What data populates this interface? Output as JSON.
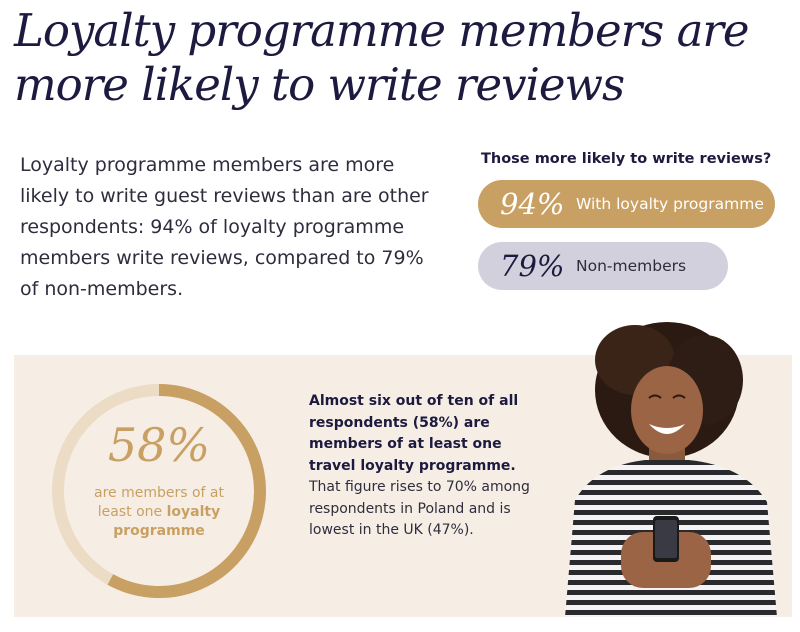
{
  "header": {
    "title": "Loyalty programme members are more likely to write reviews"
  },
  "intro": {
    "text": "Loyalty programme members are more likely to write guest reviews than are other respondents: 94% of loyalty programme members write reviews, compared to 79% of non-members."
  },
  "comparison": {
    "heading": "Those more likely to write reviews?",
    "items": [
      {
        "value_label": "94%",
        "label": "With loyalty programme"
      },
      {
        "value_label": "79%",
        "label": "Non-members"
      }
    ]
  },
  "membership": {
    "value_label": "58%",
    "caption_prefix": "are members of at least one ",
    "caption_bold": "loyalty programme",
    "fact_bold": "Almost six out of ten of all respondents (58%) are members of at least one travel loyalty programme.",
    "fact_rest": " That figure rises to 70% among respondents in Poland and is lowest in the UK (47%)."
  },
  "colors": {
    "accent_gold": "#c9a063",
    "ring_track": "#ecdcc5",
    "pill_gray": "#d2d0dc",
    "navy": "#1d1a3f",
    "band_bg": "#f6eee5"
  },
  "chart_data": [
    {
      "type": "bar",
      "title": "Those more likely to write reviews?",
      "categories": [
        "With loyalty programme",
        "Non-members"
      ],
      "values": [
        94,
        79
      ],
      "unit": "%"
    },
    {
      "type": "pie",
      "categories": [
        "are members of at least one loyalty programme"
      ],
      "values": [
        58
      ],
      "unit": "%"
    }
  ]
}
